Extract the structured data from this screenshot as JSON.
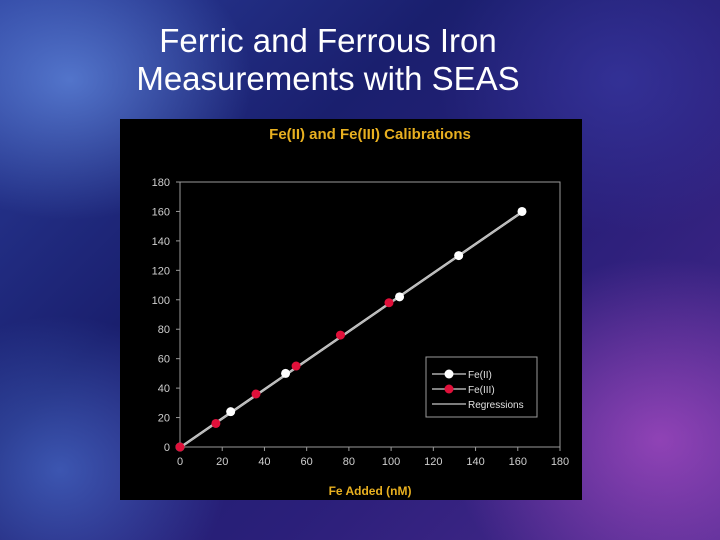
{
  "slide": {
    "title_line1": "Ferric and Ferrous Iron",
    "title_line2": "Measurements with SEAS"
  },
  "chart_data": {
    "type": "scatter",
    "title": "Fe(II) and Fe(III) Calibrations",
    "xlabel": "Fe Added (nM)",
    "ylabel": "",
    "xlim": [
      0,
      180
    ],
    "ylim": [
      0,
      180
    ],
    "xticks": [
      0,
      20,
      40,
      60,
      80,
      100,
      120,
      140,
      160,
      180
    ],
    "yticks": [
      0,
      20,
      40,
      60,
      80,
      100,
      120,
      140,
      160,
      180
    ],
    "grid": false,
    "legend_position": "bottom-right",
    "series": [
      {
        "name": "Fe(II)",
        "color": "#ffffff",
        "marker": "circle",
        "points": [
          [
            0,
            0
          ],
          [
            24,
            24
          ],
          [
            50,
            50
          ],
          [
            104,
            102
          ],
          [
            132,
            130
          ],
          [
            162,
            160
          ]
        ]
      },
      {
        "name": "Fe(III)",
        "color": "#e0103a",
        "marker": "circle",
        "points": [
          [
            0,
            0
          ],
          [
            17,
            16
          ],
          [
            36,
            36
          ],
          [
            55,
            55
          ],
          [
            76,
            76
          ],
          [
            99,
            98
          ]
        ]
      },
      {
        "name": "Regressions",
        "type": "line",
        "color": "#c8c8c8",
        "points": [
          [
            0,
            0
          ],
          [
            162,
            160
          ]
        ]
      }
    ]
  }
}
